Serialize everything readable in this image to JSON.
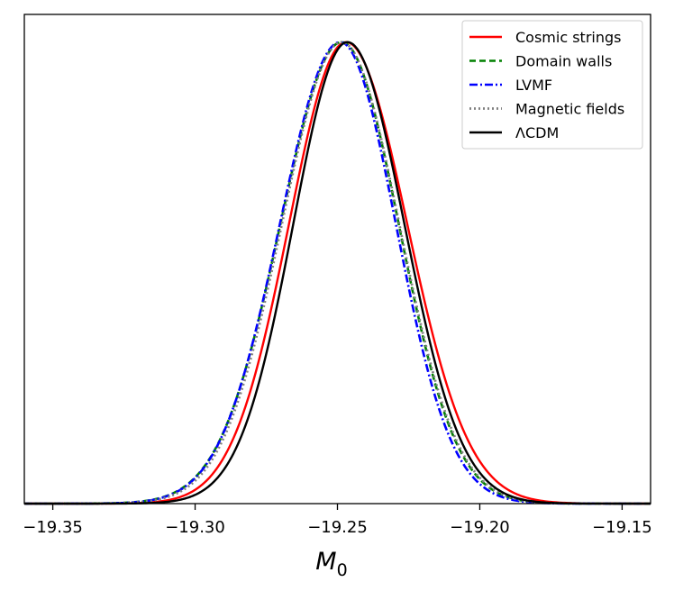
{
  "chart_data": {
    "type": "line",
    "title": "",
    "xlabel_main": "M",
    "xlabel_sub": "0",
    "ylabel": "",
    "xlim": [
      -19.36,
      -19.14
    ],
    "ylim": [
      0,
      1.06
    ],
    "xticks": [
      -19.35,
      -19.3,
      -19.25,
      -19.2,
      -19.15
    ],
    "xtick_labels": [
      "−19.35",
      "−19.30",
      "−19.25",
      "−19.20",
      "−19.15"
    ],
    "legend_position": "top-right",
    "series": [
      {
        "name": "Cosmic strings",
        "mean": -19.247,
        "sigma_left": 0.02,
        "sigma_right": 0.0215,
        "color": "#ff0000",
        "dash": "solid"
      },
      {
        "name": "Domain walls",
        "mean": -19.2485,
        "sigma_left": 0.0215,
        "sigma_right": 0.02,
        "color": "#008000",
        "dash": "dashed"
      },
      {
        "name": "LVMF",
        "mean": -19.249,
        "sigma_left": 0.0212,
        "sigma_right": 0.0195,
        "color": "#0000ff",
        "dash": "dashdot"
      },
      {
        "name": "Magnetic fields",
        "mean": -19.2485,
        "sigma_left": 0.021,
        "sigma_right": 0.0202,
        "color": "#808080",
        "dash": "dotted"
      },
      {
        "name": "ΛCDM",
        "mean": -19.2465,
        "sigma_left": 0.019,
        "sigma_right": 0.02,
        "color": "#000000",
        "dash": "solid"
      }
    ]
  }
}
